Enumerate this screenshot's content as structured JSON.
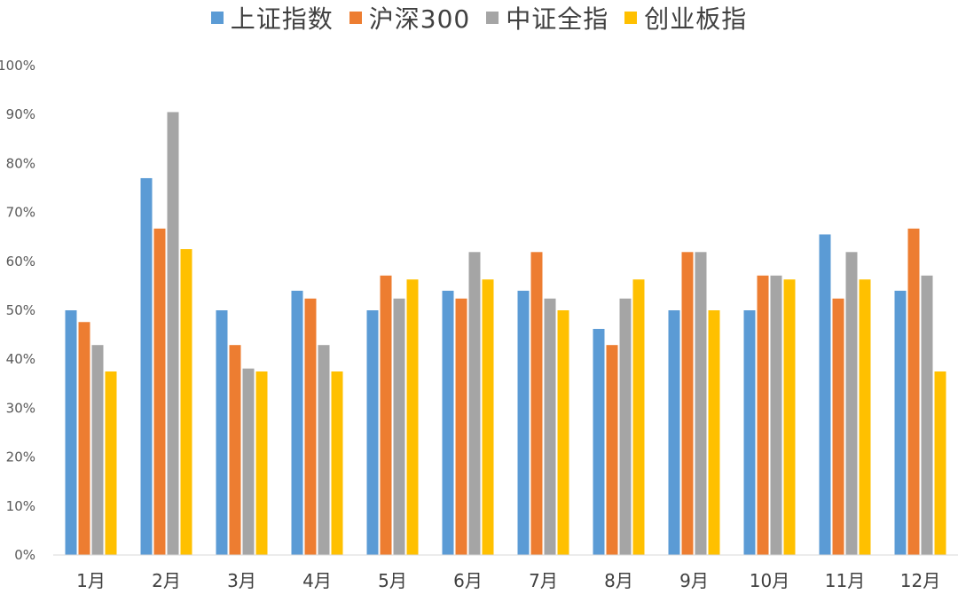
{
  "chart_data": {
    "type": "bar",
    "title": "",
    "xlabel": "",
    "ylabel": "",
    "ylim": [
      0,
      100
    ],
    "y_ticks": [
      "0%",
      "10%",
      "20%",
      "30%",
      "40%",
      "50%",
      "60%",
      "70%",
      "80%",
      "90%",
      "100%"
    ],
    "grid": false,
    "legend_position": "top-center",
    "categories": [
      "1月",
      "2月",
      "3月",
      "4月",
      "5月",
      "6月",
      "7月",
      "8月",
      "9月",
      "10月",
      "11月",
      "12月"
    ],
    "series": [
      {
        "name": "上证指数",
        "color": "#5B9BD5",
        "values": [
          50.0,
          77.0,
          50.0,
          54.0,
          50.0,
          54.0,
          54.0,
          46.2,
          50.0,
          50.0,
          65.5,
          54.0
        ]
      },
      {
        "name": "沪深300",
        "color": "#ED7D31",
        "values": [
          47.6,
          66.7,
          42.9,
          52.4,
          57.1,
          52.4,
          61.9,
          42.9,
          61.9,
          57.1,
          52.4,
          66.7
        ]
      },
      {
        "name": "中证全指",
        "color": "#A5A5A5",
        "values": [
          42.9,
          90.5,
          38.1,
          42.9,
          52.4,
          61.9,
          52.4,
          52.4,
          61.9,
          57.1,
          61.9,
          57.1
        ]
      },
      {
        "name": "创业板指",
        "color": "#FFC000",
        "values": [
          37.5,
          62.5,
          37.5,
          37.5,
          56.3,
          56.3,
          50.0,
          56.3,
          50.0,
          56.3,
          56.3,
          37.5
        ]
      }
    ]
  }
}
